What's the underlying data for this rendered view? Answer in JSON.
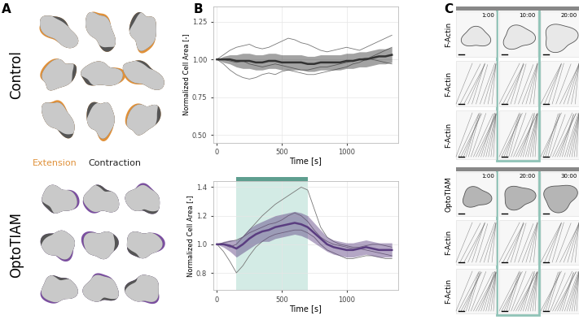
{
  "panel_a": {
    "label": "A",
    "groups": [
      {
        "name": "Control",
        "color": "#e0913a"
      },
      {
        "name": "OptoTIAM",
        "color": "#7b4fa0"
      }
    ],
    "key": [
      {
        "name": "Extension",
        "color": "#e0913a"
      },
      {
        "name": "Contraction",
        "color": "#222222"
      }
    ]
  },
  "panel_b_label": "B",
  "chart_data": [
    {
      "type": "line",
      "x_label": "Time [s]",
      "y_label": "Normalized Cell Area [-]",
      "grid": true,
      "xlim": [
        -30,
        1400
      ],
      "xticks": [
        0,
        500,
        1000
      ],
      "ylim": [
        0.45,
        1.35
      ],
      "yticks": [
        {
          "value": 0.5,
          "label": "0.50"
        },
        0.75,
        {
          "value": 1.0,
          "label": "1.00"
        },
        1.25
      ],
      "x": [
        0,
        50,
        100,
        150,
        200,
        250,
        300,
        350,
        400,
        450,
        500,
        550,
        600,
        650,
        700,
        750,
        800,
        850,
        900,
        950,
        1000,
        1050,
        1100,
        1150,
        1200,
        1250,
        1300,
        1350
      ],
      "series": [
        {
          "type": "line",
          "color": "#777777",
          "values": [
            1.0,
            1.03,
            1.06,
            1.08,
            1.09,
            1.1,
            1.08,
            1.07,
            1.08,
            1.1,
            1.12,
            1.14,
            1.13,
            1.11,
            1.1,
            1.08,
            1.06,
            1.05,
            1.06,
            1.07,
            1.08,
            1.07,
            1.06,
            1.08,
            1.1,
            1.12,
            1.14,
            1.16
          ]
        },
        {
          "type": "line",
          "color": "#777777",
          "values": [
            1.0,
            0.97,
            0.93,
            0.9,
            0.88,
            0.87,
            0.88,
            0.9,
            0.91,
            0.9,
            0.92,
            0.93,
            0.92,
            0.91,
            0.9,
            0.9,
            0.91,
            0.92,
            0.93,
            0.94,
            0.95,
            0.97,
            0.98,
            1.0,
            1.02,
            1.04,
            1.06,
            1.08
          ]
        },
        {
          "type": "line",
          "color": "#777777",
          "values": [
            1.0,
            1.0,
            0.99,
            0.98,
            0.99,
            0.97,
            0.96,
            0.95,
            0.96,
            0.97,
            0.96,
            0.95,
            0.94,
            0.93,
            0.93,
            0.94,
            0.95,
            0.95,
            0.96,
            0.97,
            0.98,
            0.99,
            1.0,
            1.01,
            1.0,
            0.99,
            0.98,
            0.97
          ]
        },
        {
          "type": "band",
          "color": "#333333",
          "values": [
            1.0,
            1.0,
            1.0,
            0.99,
            0.99,
            0.99,
            0.98,
            0.98,
            0.99,
            0.99,
            0.98,
            0.98,
            0.98,
            0.98,
            0.97,
            0.97,
            0.98,
            0.98,
            0.98,
            0.98,
            0.99,
            0.99,
            1.0,
            1.0,
            1.01,
            1.02,
            1.02,
            1.03
          ],
          "lower": [
            1.0,
            0.98,
            0.97,
            0.95,
            0.94,
            0.94,
            0.93,
            0.93,
            0.94,
            0.94,
            0.93,
            0.93,
            0.93,
            0.93,
            0.92,
            0.92,
            0.93,
            0.93,
            0.93,
            0.93,
            0.94,
            0.94,
            0.95,
            0.95,
            0.96,
            0.97,
            0.97,
            0.98
          ],
          "upper": [
            1.0,
            1.02,
            1.03,
            1.03,
            1.04,
            1.04,
            1.03,
            1.03,
            1.04,
            1.04,
            1.03,
            1.03,
            1.03,
            1.03,
            1.02,
            1.02,
            1.03,
            1.03,
            1.03,
            1.03,
            1.04,
            1.04,
            1.05,
            1.05,
            1.06,
            1.07,
            1.07,
            1.08
          ]
        }
      ]
    },
    {
      "type": "line",
      "x_label": "Time [s]",
      "y_label": "Normalized Cell Area [-]",
      "grid": true,
      "xlim": [
        -30,
        1400
      ],
      "xticks": [
        0,
        500,
        1000
      ],
      "ylim": [
        0.68,
        1.44
      ],
      "yticks": [
        0.8,
        1.0,
        1.2,
        1.4
      ],
      "stimulus": {
        "range": [
          150,
          700
        ],
        "color": "#d3ebe5"
      },
      "x": [
        0,
        50,
        100,
        150,
        200,
        250,
        300,
        350,
        400,
        450,
        500,
        550,
        600,
        650,
        700,
        750,
        800,
        850,
        900,
        950,
        1000,
        1050,
        1100,
        1150,
        1200,
        1250,
        1300,
        1350
      ],
      "series": [
        {
          "type": "line",
          "color": "#777777",
          "values": [
            1.0,
            1.0,
            0.98,
            1.0,
            1.05,
            1.1,
            1.15,
            1.2,
            1.24,
            1.28,
            1.31,
            1.34,
            1.37,
            1.4,
            1.38,
            1.25,
            1.12,
            1.05,
            1.02,
            1.0,
            0.99,
            0.98,
            0.98,
            0.99,
            1.0,
            1.0,
            0.99,
            0.98
          ]
        },
        {
          "type": "line",
          "color": "#777777",
          "values": [
            1.0,
            0.95,
            0.88,
            0.8,
            0.85,
            0.92,
            0.98,
            1.02,
            1.05,
            1.07,
            1.08,
            1.09,
            1.1,
            1.1,
            1.08,
            1.05,
            1.0,
            0.96,
            0.94,
            0.92,
            0.9,
            0.9,
            0.91,
            0.92,
            0.92,
            0.91,
            0.9,
            0.9
          ]
        },
        {
          "type": "line",
          "color": "#777777",
          "values": [
            1.0,
            1.01,
            1.02,
            1.03,
            1.05,
            1.08,
            1.1,
            1.12,
            1.14,
            1.15,
            1.17,
            1.2,
            1.22,
            1.2,
            1.16,
            1.1,
            1.05,
            1.02,
            1.0,
            0.99,
            0.98,
            0.97,
            0.97,
            0.96,
            0.95,
            0.94,
            0.93,
            0.92
          ]
        },
        {
          "type": "band",
          "color": "#5a3d80",
          "values": [
            1.0,
            1.0,
            0.99,
            0.97,
            1.0,
            1.04,
            1.07,
            1.09,
            1.1,
            1.12,
            1.13,
            1.14,
            1.15,
            1.14,
            1.12,
            1.08,
            1.04,
            1.0,
            0.98,
            0.97,
            0.96,
            0.96,
            0.97,
            0.98,
            0.97,
            0.96,
            0.96,
            0.96
          ],
          "lower": [
            1.0,
            0.98,
            0.95,
            0.91,
            0.94,
            0.97,
            1.0,
            1.02,
            1.02,
            1.04,
            1.05,
            1.06,
            1.07,
            1.06,
            1.04,
            1.01,
            0.98,
            0.95,
            0.93,
            0.92,
            0.91,
            0.91,
            0.92,
            0.93,
            0.92,
            0.91,
            0.91,
            0.91
          ],
          "upper": [
            1.0,
            1.02,
            1.03,
            1.03,
            1.06,
            1.11,
            1.14,
            1.16,
            1.18,
            1.2,
            1.21,
            1.22,
            1.23,
            1.22,
            1.2,
            1.15,
            1.1,
            1.05,
            1.03,
            1.02,
            1.01,
            1.01,
            1.02,
            1.03,
            1.02,
            1.01,
            1.01,
            1.01
          ]
        }
      ]
    }
  ],
  "panel_c": {
    "label": "C",
    "groups": [
      {
        "rows": [
          "F-Actin",
          "F-Actin",
          "F-Actin"
        ],
        "times": [
          "1:00",
          "10:00",
          "20:00"
        ]
      },
      {
        "rows": [
          "OptoTIAM",
          "F-Actin",
          "F-Actin"
        ],
        "times": [
          "1:00",
          "20:00",
          "30:00"
        ]
      }
    ]
  }
}
